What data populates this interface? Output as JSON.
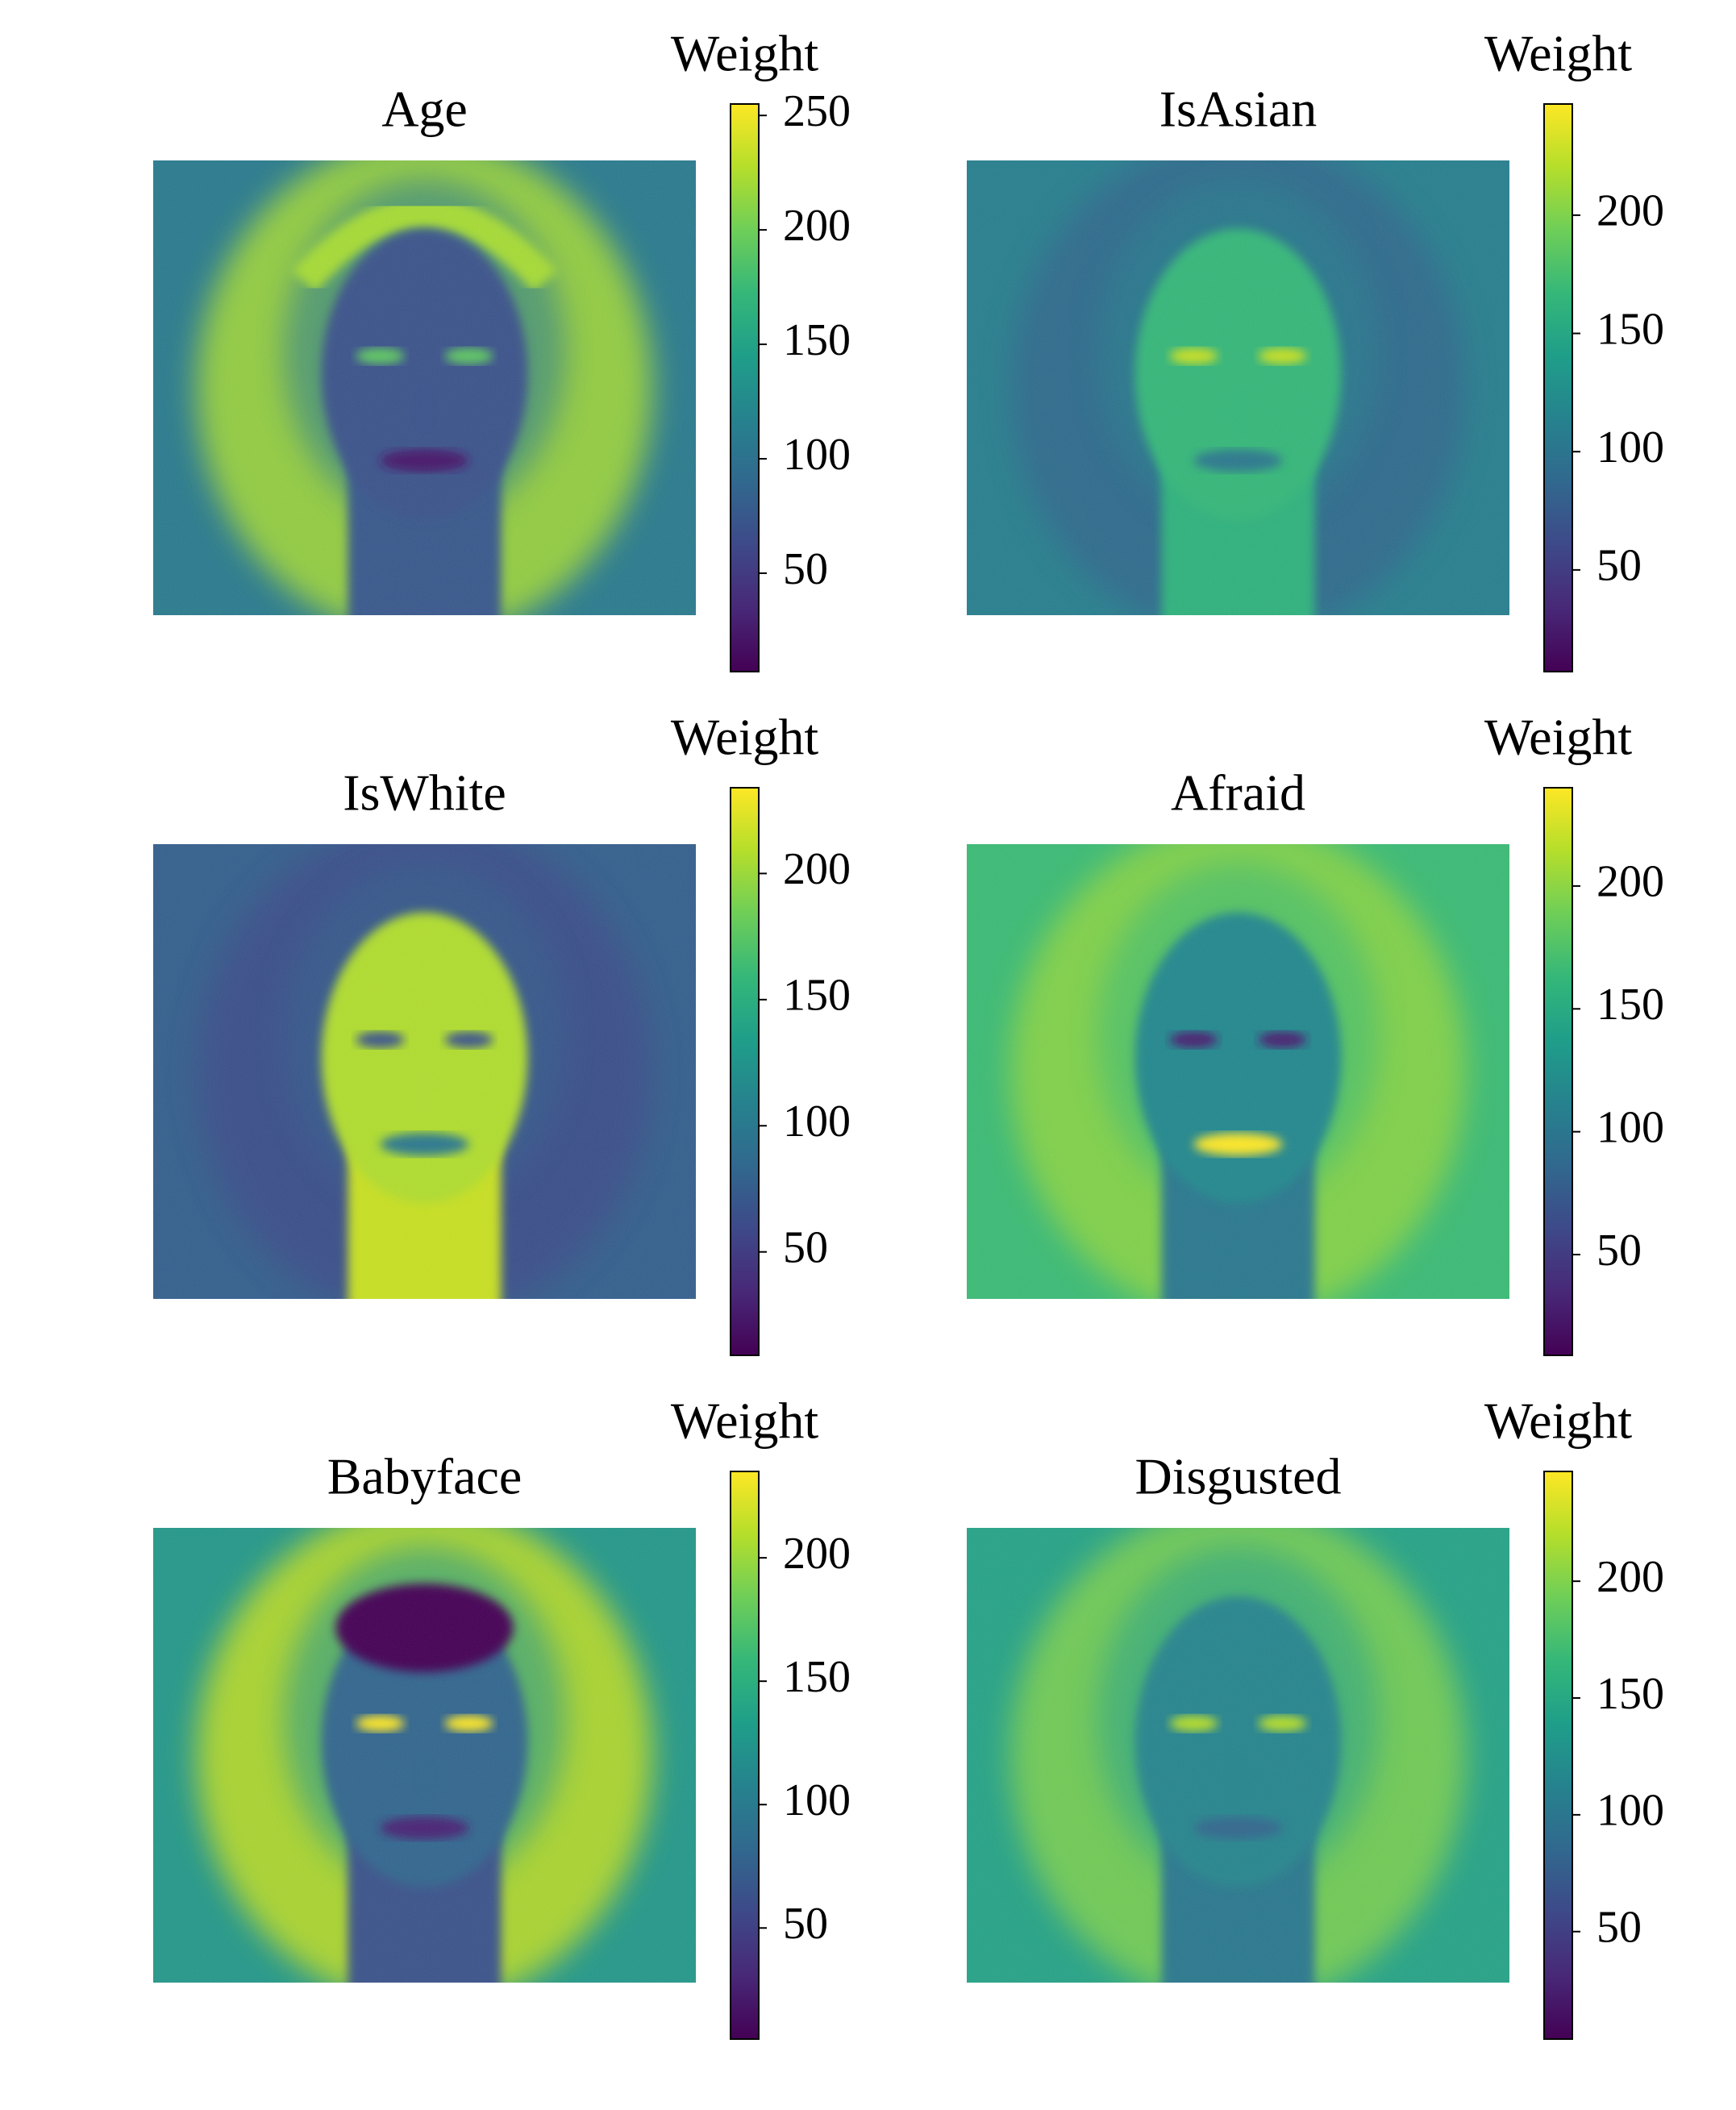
{
  "chart_data": [
    {
      "type": "heatmap",
      "title": "Age",
      "colorbar_label": "Weight",
      "colormap": "viridis",
      "ylim": [
        7,
        255
      ],
      "yticks": [
        50,
        100,
        150,
        200,
        250
      ]
    },
    {
      "type": "heatmap",
      "title": "IsAsian",
      "colorbar_label": "Weight",
      "colormap": "viridis",
      "ylim": [
        7,
        247
      ],
      "yticks": [
        50,
        100,
        150,
        200
      ]
    },
    {
      "type": "heatmap",
      "title": "IsWhite",
      "colorbar_label": "Weight",
      "colormap": "viridis",
      "ylim": [
        9,
        234
      ],
      "yticks": [
        50,
        100,
        150,
        200
      ]
    },
    {
      "type": "heatmap",
      "title": "Afraid",
      "colorbar_label": "Weight",
      "colormap": "viridis",
      "ylim": [
        9,
        240
      ],
      "yticks": [
        50,
        100,
        150,
        200
      ]
    },
    {
      "type": "heatmap",
      "title": "Babyface",
      "colorbar_label": "Weight",
      "colormap": "viridis",
      "ylim": [
        5,
        235
      ],
      "yticks": [
        50,
        100,
        150,
        200
      ]
    },
    {
      "type": "heatmap",
      "title": "Disgusted",
      "colorbar_label": "Weight",
      "colormap": "viridis",
      "ylim": [
        4,
        247
      ],
      "yticks": [
        50,
        100,
        150,
        200
      ]
    }
  ]
}
